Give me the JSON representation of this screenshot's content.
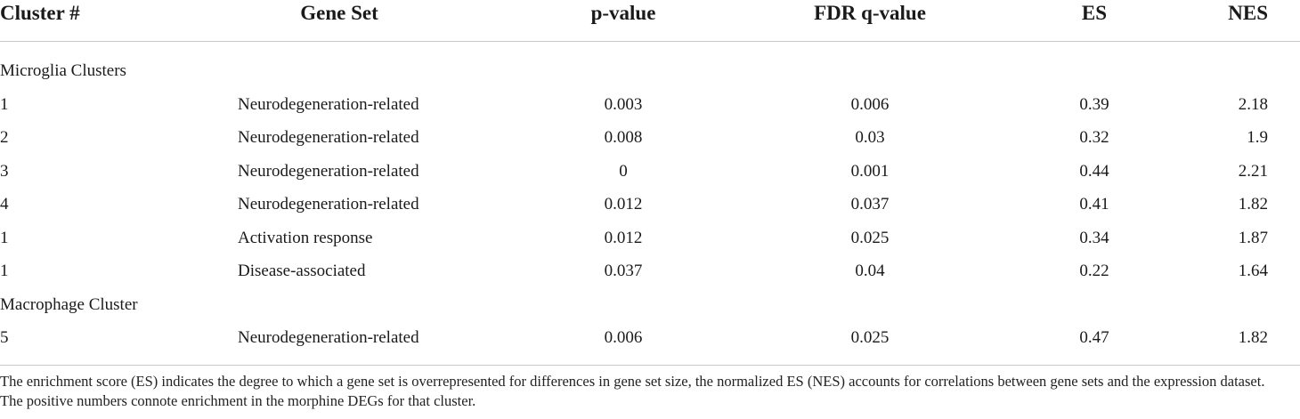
{
  "table": {
    "headers": {
      "cluster": "Cluster #",
      "gene_set": "Gene Set",
      "p_value": "p-value",
      "fdr": "FDR q-value",
      "es": "ES",
      "nes": "NES"
    },
    "sections": [
      {
        "title": "Microglia Clusters",
        "rows": [
          {
            "cluster": "1",
            "gene_set": "Neurodegeneration-related",
            "p_value": "0.003",
            "fdr": "0.006",
            "es": "0.39",
            "nes": "2.18"
          },
          {
            "cluster": "2",
            "gene_set": "Neurodegeneration-related",
            "p_value": "0.008",
            "fdr": "0.03",
            "es": "0.32",
            "nes": "1.9"
          },
          {
            "cluster": "3",
            "gene_set": "Neurodegeneration-related",
            "p_value": "0",
            "fdr": "0.001",
            "es": "0.44",
            "nes": "2.21"
          },
          {
            "cluster": "4",
            "gene_set": "Neurodegeneration-related",
            "p_value": "0.012",
            "fdr": "0.037",
            "es": "0.41",
            "nes": "1.82"
          },
          {
            "cluster": "1",
            "gene_set": "Activation response",
            "p_value": "0.012",
            "fdr": "0.025",
            "es": "0.34",
            "nes": "1.87"
          },
          {
            "cluster": "1",
            "gene_set": "Disease-associated",
            "p_value": "0.037",
            "fdr": "0.04",
            "es": "0.22",
            "nes": "1.64"
          }
        ]
      },
      {
        "title": "Macrophage Cluster",
        "rows": [
          {
            "cluster": "5",
            "gene_set": "Neurodegeneration-related",
            "p_value": "0.006",
            "fdr": "0.025",
            "es": "0.47",
            "nes": "1.82"
          }
        ]
      }
    ]
  },
  "footnote": "The enrichment score (ES) indicates the degree to which a gene set is overrepresented for differences in gene set size, the normalized ES (NES) accounts for correlations between gene sets and the expression dataset. The positive numbers connote enrichment in the morphine DEGs for that cluster."
}
